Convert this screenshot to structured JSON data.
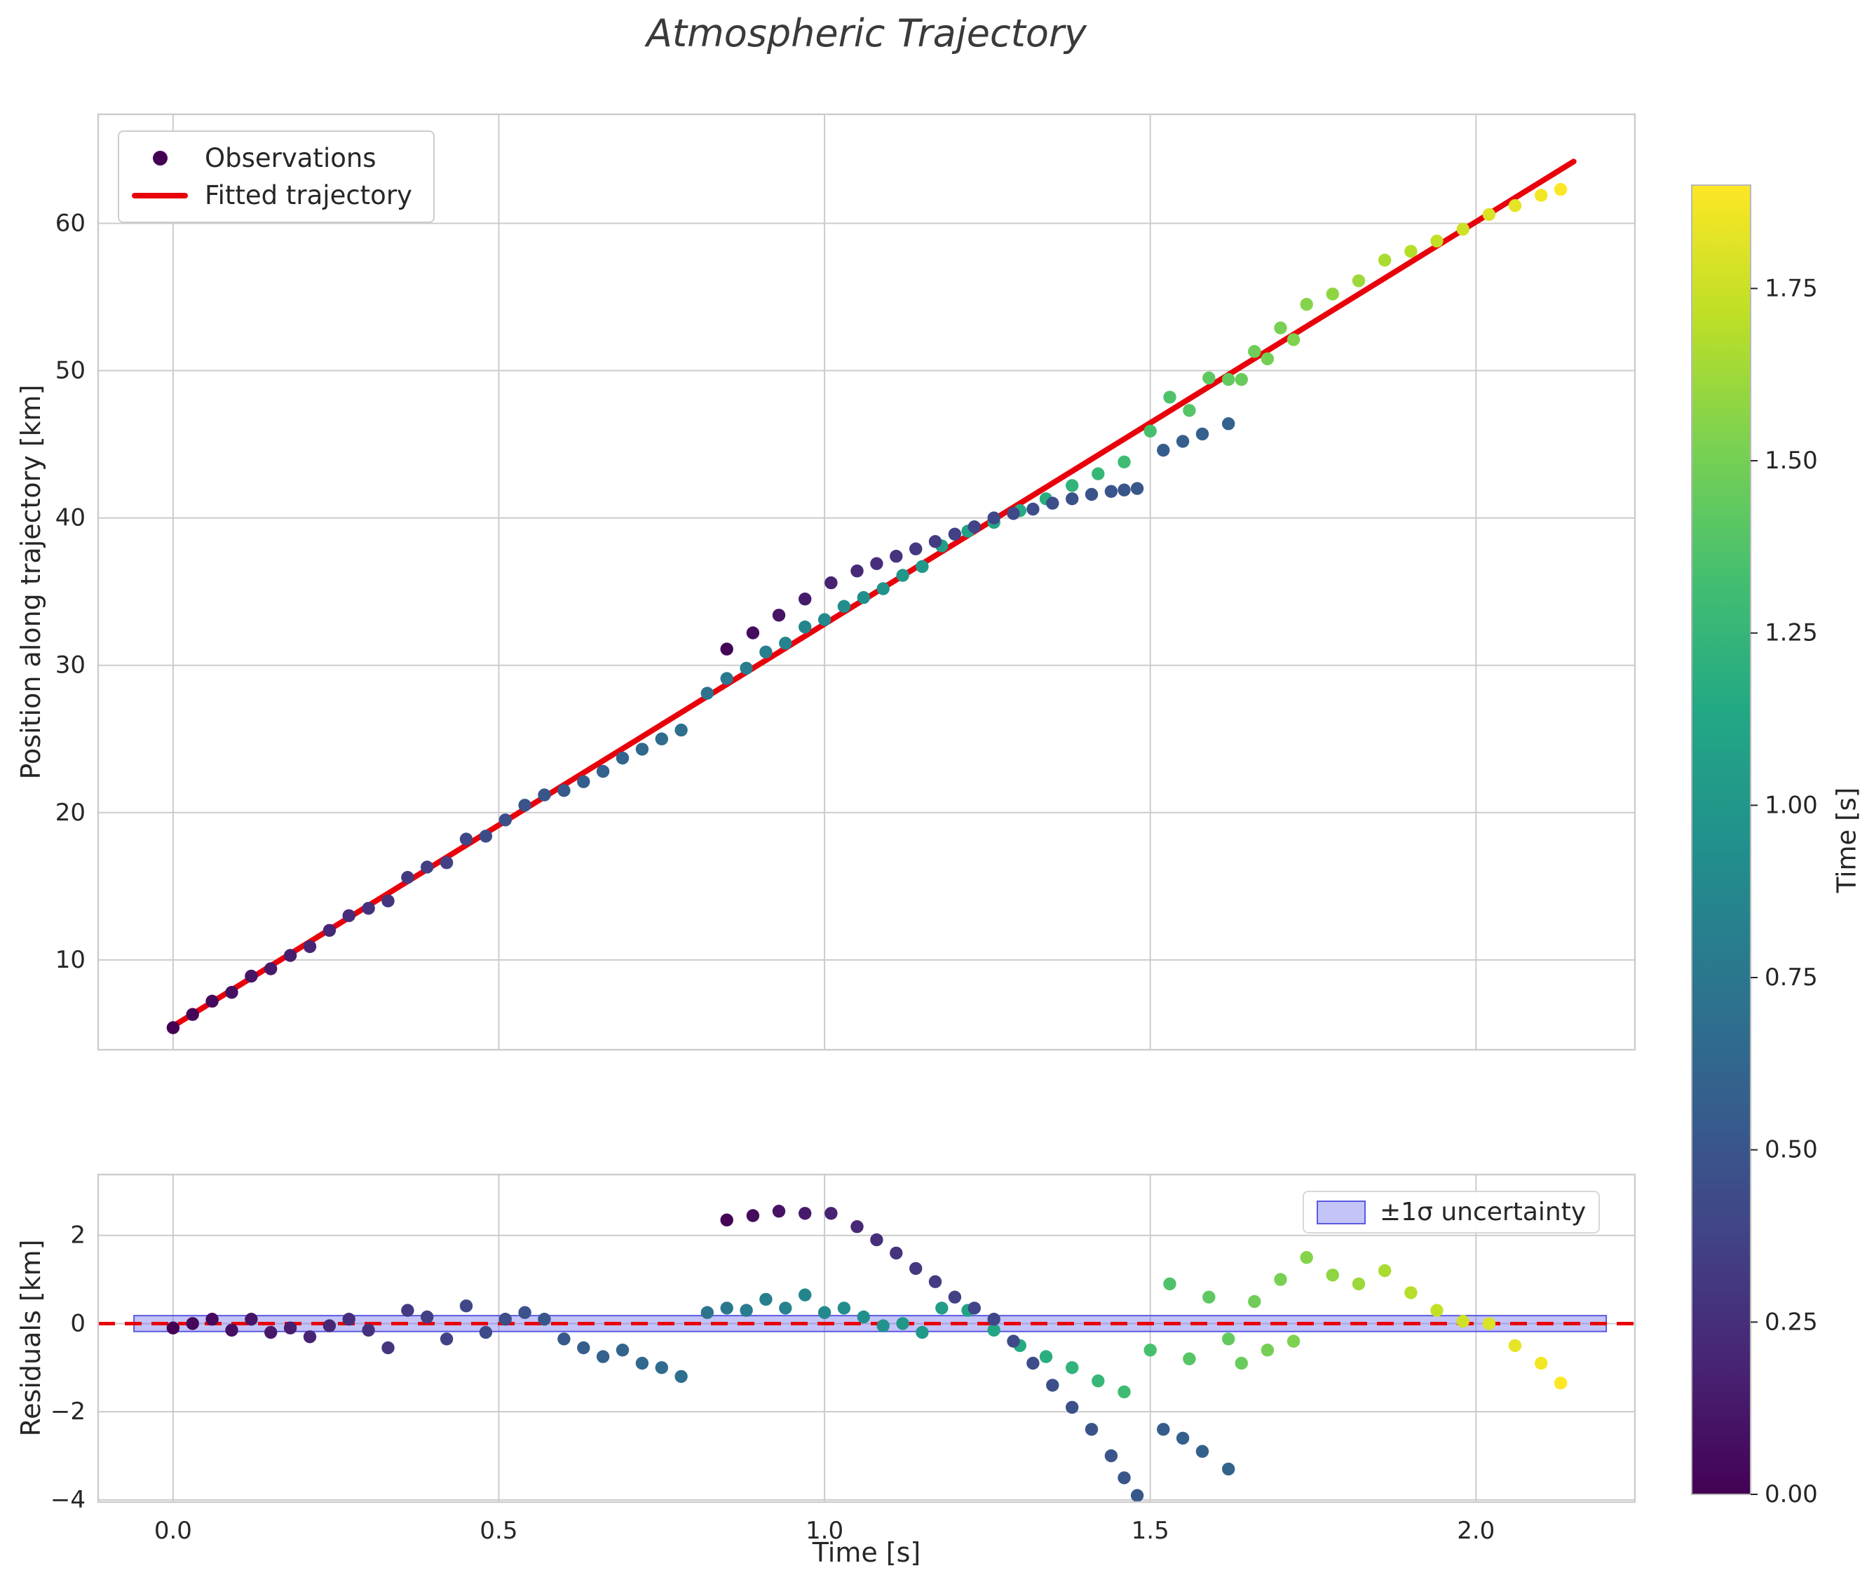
{
  "title": "Atmospheric Trajectory",
  "colors": {
    "fit_line": "#e8000b",
    "zero_line": "#e8000b",
    "band_fill": "rgba(108,108,240,0.40)",
    "band_edge": "#5a5ae0",
    "legend_dot": "#440154",
    "grid": "#cccccc",
    "frame": "#cccccc",
    "text": "#262626",
    "title_color": "#3a3a3a"
  },
  "chart_data": {
    "type": "scatter",
    "title": "Atmospheric Trajectory",
    "top_panel": {
      "ylabel": "Position along trajectory [km]",
      "xlim": [
        -0.115,
        2.244
      ],
      "ylim": [
        3.9,
        67.4
      ],
      "xticks": [
        0.0,
        0.5,
        1.0,
        1.5,
        2.0
      ],
      "yticks": [
        10,
        20,
        30,
        40,
        50,
        60
      ],
      "ytick_labels": [
        "10",
        "20",
        "30",
        "40",
        "50",
        "60"
      ],
      "legend": {
        "observations": "Observations",
        "fitted": "Fitted trajectory"
      },
      "fit_line": {
        "label": "Fitted trajectory",
        "intercept_km": 5.5,
        "slope_km_per_s": 27.3,
        "t_start": 0.0,
        "t_end": 2.15
      }
    },
    "bottom_panel": {
      "ylabel": "Residuals [km]",
      "xlabel": "Time [s]",
      "ylim": [
        -4.05,
        3.38
      ],
      "yticks": [
        -4,
        -2,
        0,
        2
      ],
      "ytick_labels": [
        "−4",
        "−2",
        "0",
        "2"
      ],
      "xtick_labels": [
        "0.0",
        "0.5",
        "1.0",
        "1.5",
        "2.0"
      ],
      "band_label": "±1σ uncertainty",
      "band_halfwidth_km": 0.18,
      "band_t_range": [
        -0.06,
        2.2
      ],
      "zero_line_value": 0
    },
    "colorbar": {
      "label": "Time [s]",
      "vmin": 0.0,
      "vmax": 1.9,
      "ticks": [
        0.0,
        0.25,
        0.5,
        0.75,
        1.0,
        1.25,
        1.5,
        1.75
      ],
      "tick_labels": [
        "0.00",
        "0.25",
        "0.50",
        "0.75",
        "1.00",
        "1.25",
        "1.50",
        "1.75"
      ],
      "colormap": "viridis",
      "stops": [
        "#440154",
        "#482475",
        "#414487",
        "#355f8d",
        "#2a788e",
        "#21918c",
        "#22a884",
        "#44bf70",
        "#7ad151",
        "#bddf26",
        "#fde725"
      ]
    },
    "points_columns": [
      "time_s",
      "position_km",
      "residual_km",
      "color_time_s"
    ],
    "points": [
      [
        0.0,
        5.4,
        -0.1,
        0.0
      ],
      [
        0.03,
        6.3,
        0.0,
        0.03
      ],
      [
        0.06,
        7.2,
        0.1,
        0.05
      ],
      [
        0.09,
        7.8,
        -0.15,
        0.08
      ],
      [
        0.12,
        8.9,
        0.1,
        0.11
      ],
      [
        0.15,
        9.4,
        -0.2,
        0.13
      ],
      [
        0.18,
        10.3,
        -0.1,
        0.16
      ],
      [
        0.21,
        10.9,
        -0.3,
        0.19
      ],
      [
        0.24,
        12.0,
        -0.05,
        0.21
      ],
      [
        0.27,
        13.0,
        0.1,
        0.24
      ],
      [
        0.3,
        13.5,
        -0.15,
        0.27
      ],
      [
        0.33,
        14.0,
        -0.55,
        0.29
      ],
      [
        0.36,
        15.6,
        0.3,
        0.32
      ],
      [
        0.39,
        16.3,
        0.15,
        0.35
      ],
      [
        0.42,
        16.6,
        -0.35,
        0.37
      ],
      [
        0.45,
        18.2,
        0.4,
        0.4
      ],
      [
        0.48,
        18.4,
        -0.2,
        0.43
      ],
      [
        0.51,
        19.5,
        0.1,
        0.45
      ],
      [
        0.54,
        20.5,
        0.25,
        0.48
      ],
      [
        0.57,
        21.2,
        0.1,
        0.51
      ],
      [
        0.6,
        21.5,
        -0.35,
        0.53
      ],
      [
        0.63,
        22.1,
        -0.55,
        0.56
      ],
      [
        0.66,
        22.8,
        -0.75,
        0.59
      ],
      [
        0.69,
        23.7,
        -0.6,
        0.61
      ],
      [
        0.72,
        24.3,
        -0.9,
        0.64
      ],
      [
        0.75,
        25.0,
        -1.0,
        0.67
      ],
      [
        0.78,
        25.6,
        -1.2,
        0.69
      ],
      [
        0.82,
        28.1,
        0.25,
        0.73
      ],
      [
        0.85,
        29.1,
        0.35,
        0.76
      ],
      [
        0.88,
        29.8,
        0.3,
        0.78
      ],
      [
        0.91,
        30.9,
        0.55,
        0.81
      ],
      [
        0.94,
        31.5,
        0.35,
        0.84
      ],
      [
        0.97,
        32.6,
        0.65,
        0.86
      ],
      [
        1.0,
        33.1,
        0.25,
        0.89
      ],
      [
        1.03,
        34.0,
        0.35,
        0.92
      ],
      [
        1.06,
        34.6,
        0.15,
        0.94
      ],
      [
        1.09,
        35.2,
        -0.05,
        0.97
      ],
      [
        1.12,
        36.1,
        0.0,
        1.0
      ],
      [
        1.15,
        36.7,
        -0.2,
        1.02
      ],
      [
        1.18,
        38.1,
        0.35,
        1.05
      ],
      [
        1.22,
        39.1,
        0.3,
        1.09
      ],
      [
        1.26,
        39.7,
        -0.15,
        1.12
      ],
      [
        1.3,
        40.5,
        -0.5,
        1.16
      ],
      [
        1.34,
        41.3,
        -0.75,
        1.19
      ],
      [
        1.38,
        42.2,
        -1.0,
        1.23
      ],
      [
        1.42,
        43.0,
        -1.3,
        1.26
      ],
      [
        1.46,
        43.8,
        -1.55,
        1.3
      ],
      [
        1.5,
        45.9,
        -0.6,
        1.34
      ],
      [
        1.53,
        48.2,
        0.9,
        1.36
      ],
      [
        1.56,
        47.3,
        -0.8,
        1.39
      ],
      [
        1.59,
        49.5,
        0.6,
        1.42
      ],
      [
        1.62,
        49.4,
        -0.35,
        1.44
      ],
      [
        1.64,
        49.4,
        -0.9,
        1.46
      ],
      [
        1.66,
        51.3,
        0.5,
        1.48
      ],
      [
        1.68,
        50.8,
        -0.6,
        1.5
      ],
      [
        1.7,
        52.9,
        1.0,
        1.51
      ],
      [
        1.72,
        52.1,
        -0.4,
        1.53
      ],
      [
        1.74,
        54.5,
        1.5,
        1.55
      ],
      [
        1.78,
        55.2,
        1.1,
        1.58
      ],
      [
        1.82,
        56.1,
        0.9,
        1.62
      ],
      [
        1.86,
        57.5,
        1.2,
        1.66
      ],
      [
        1.9,
        58.1,
        0.7,
        1.69
      ],
      [
        1.94,
        58.8,
        0.3,
        1.73
      ],
      [
        1.98,
        59.6,
        0.05,
        1.76
      ],
      [
        2.02,
        60.6,
        0.0,
        1.8
      ],
      [
        2.06,
        61.2,
        -0.5,
        1.83
      ],
      [
        2.1,
        61.9,
        -0.9,
        1.87
      ],
      [
        2.13,
        62.3,
        -1.35,
        1.9
      ],
      [
        0.85,
        31.1,
        2.35,
        0.02
      ],
      [
        0.89,
        32.2,
        2.45,
        0.06
      ],
      [
        0.93,
        33.4,
        2.55,
        0.1
      ],
      [
        0.97,
        34.5,
        2.5,
        0.14
      ],
      [
        1.01,
        35.6,
        2.5,
        0.18
      ],
      [
        1.05,
        36.4,
        2.2,
        0.22
      ],
      [
        1.08,
        36.9,
        1.9,
        0.25
      ],
      [
        1.11,
        37.4,
        1.6,
        0.28
      ],
      [
        1.14,
        37.9,
        1.25,
        0.31
      ],
      [
        1.17,
        38.4,
        0.95,
        0.33
      ],
      [
        1.2,
        38.9,
        0.6,
        0.36
      ],
      [
        1.23,
        39.4,
        0.35,
        0.38
      ],
      [
        1.26,
        40.0,
        0.1,
        0.4
      ],
      [
        1.29,
        40.3,
        -0.4,
        0.42
      ],
      [
        1.32,
        40.6,
        -0.9,
        0.44
      ],
      [
        1.35,
        41.0,
        -1.4,
        0.46
      ],
      [
        1.38,
        41.3,
        -1.9,
        0.47
      ],
      [
        1.41,
        41.6,
        -2.4,
        0.49
      ],
      [
        1.44,
        41.8,
        -3.0,
        0.5
      ],
      [
        1.46,
        41.9,
        -3.5,
        0.51
      ],
      [
        1.48,
        42.0,
        -3.9,
        0.52
      ],
      [
        1.52,
        44.6,
        -2.4,
        0.55
      ],
      [
        1.55,
        45.2,
        -2.6,
        0.57
      ],
      [
        1.58,
        45.7,
        -2.9,
        0.58
      ],
      [
        1.62,
        46.4,
        -3.3,
        0.6
      ]
    ]
  }
}
